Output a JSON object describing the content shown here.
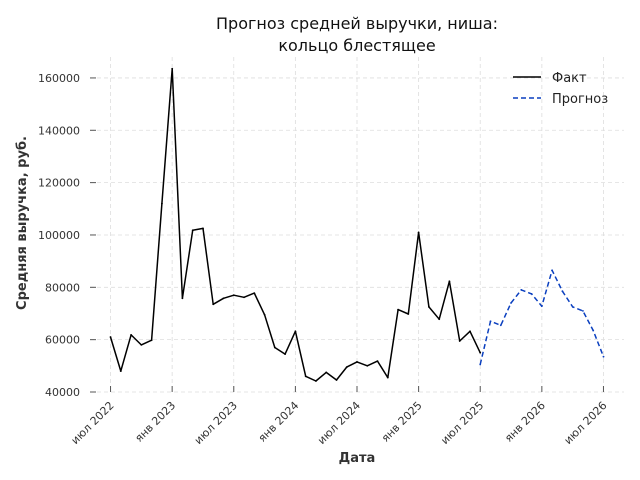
{
  "chart_data": {
    "type": "line",
    "title": [
      "Прогноз средней выручки, ниша:",
      "кольцо блестящее"
    ],
    "xlabel": "Дата",
    "ylabel": "Средняя выручка, руб.",
    "ylim": [
      40000,
      168000
    ],
    "yticks": [
      40000,
      60000,
      80000,
      100000,
      120000,
      140000,
      160000
    ],
    "ytick_labels": [
      "40000",
      "60000",
      "80000",
      "100000",
      "120000",
      "140000",
      "160000"
    ],
    "xticks": [
      "2022-07",
      "2023-01",
      "2023-07",
      "2024-01",
      "2024-07",
      "2025-01",
      "2025-07",
      "2026-01",
      "2026-07"
    ],
    "xtick_labels": [
      "июл 2022",
      "янв 2023",
      "июл 2023",
      "янв 2024",
      "июл 2024",
      "янв 2025",
      "июл 2025",
      "янв 2026",
      "июл 2026"
    ],
    "xlim": [
      "2022-05",
      "2026-09"
    ],
    "grid": true,
    "legend_position": "top-right",
    "series": [
      {
        "name": "Факт",
        "color": "#000000",
        "style": "solid",
        "x": [
          "2022-07",
          "2022-08",
          "2022-09",
          "2022-10",
          "2022-11",
          "2022-12",
          "2023-01",
          "2023-02",
          "2023-03",
          "2023-04",
          "2023-05",
          "2023-06",
          "2023-07",
          "2023-08",
          "2023-09",
          "2023-10",
          "2023-11",
          "2023-12",
          "2024-01",
          "2024-02",
          "2024-03",
          "2024-04",
          "2024-05",
          "2024-06",
          "2024-07",
          "2024-08",
          "2024-09",
          "2024-10",
          "2024-11",
          "2024-12",
          "2025-01",
          "2025-02",
          "2025-03",
          "2025-04",
          "2025-05",
          "2025-06",
          "2025-07"
        ],
        "values": [
          61000,
          48000,
          61800,
          58000,
          59800,
          112000,
          163500,
          75800,
          101800,
          102500,
          73500,
          75800,
          77000,
          76200,
          77800,
          69500,
          57000,
          54500,
          63200,
          46000,
          44200,
          47500,
          44600,
          49500,
          51500,
          50000,
          51800,
          45500,
          71500,
          69800,
          101000,
          72500,
          67800,
          82300,
          59500,
          63200,
          55000
        ]
      },
      {
        "name": "Прогноз",
        "color": "#0a3fbf",
        "style": "dashed",
        "x": [
          "2025-07",
          "2025-08",
          "2025-09",
          "2025-10",
          "2025-11",
          "2025-12",
          "2026-01",
          "2026-02",
          "2026-03",
          "2026-04",
          "2026-05",
          "2026-06",
          "2026-07"
        ],
        "values": [
          50500,
          67000,
          65500,
          74000,
          79000,
          77500,
          72800,
          86500,
          78500,
          72500,
          71000,
          63500,
          53500
        ]
      }
    ]
  }
}
